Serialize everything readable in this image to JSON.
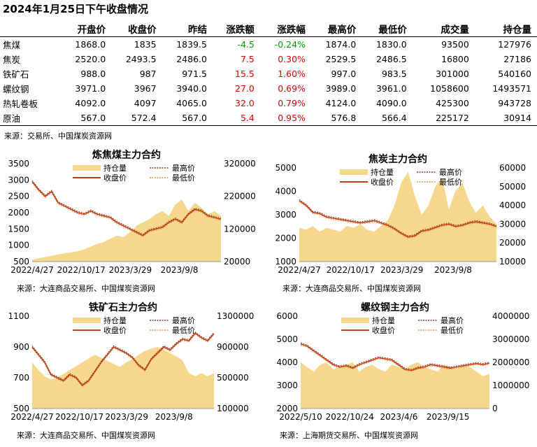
{
  "page": {
    "title": "2024年1月25日下午收盘情况",
    "source": "来源：交易所、中国煤炭资源网"
  },
  "table": {
    "headers": [
      "",
      "开盘价",
      "收盘价",
      "昨结",
      "涨跌额",
      "涨跌幅",
      "最高价",
      "最低价",
      "成交量",
      "持仓量"
    ],
    "rows": [
      {
        "name": "焦煤",
        "open": "1868.0",
        "close": "1835",
        "prev": "1839.5",
        "chg": "-4.5",
        "pct": "-0.24%",
        "high": "1874.0",
        "low": "1830.0",
        "vol": "93500",
        "oi": "127976",
        "dir": "down"
      },
      {
        "name": "焦炭",
        "open": "2520.0",
        "close": "2493.5",
        "prev": "2486.0",
        "chg": "7.5",
        "pct": "0.30%",
        "high": "2529.5",
        "low": "2486.5",
        "vol": "16800",
        "oi": "27186",
        "dir": "up"
      },
      {
        "name": "铁矿石",
        "open": "988.0",
        "close": "987",
        "prev": "971.5",
        "chg": "15.5",
        "pct": "1.60%",
        "high": "997.0",
        "low": "983.5",
        "vol": "301000",
        "oi": "540160",
        "dir": "up"
      },
      {
        "name": "螺纹钢",
        "open": "3971.0",
        "close": "3967",
        "prev": "3940.0",
        "chg": "27.0",
        "pct": "0.69%",
        "high": "3989.0",
        "low": "3961.0",
        "vol": "1058600",
        "oi": "1493571",
        "dir": "up"
      },
      {
        "name": "热轧卷板",
        "open": "4092.0",
        "close": "4097",
        "prev": "4065.0",
        "chg": "32.0",
        "pct": "0.79%",
        "high": "4124.0",
        "low": "4090.0",
        "vol": "425300",
        "oi": "943728",
        "dir": "up"
      },
      {
        "name": "原油",
        "open": "567.0",
        "close": "572.4",
        "prev": "567.0",
        "chg": "5.4",
        "pct": "0.95%",
        "high": "576.8",
        "low": "566.4",
        "vol": "225172",
        "oi": "30914",
        "dir": "up"
      }
    ]
  },
  "colors": {
    "up": "#e00000",
    "down": "#00a000",
    "oi_fill": "#f5d78e",
    "close_line": "#c0401a",
    "high_line": "#8b3a1a",
    "low_line": "#e8904a"
  },
  "legend_labels": {
    "oi": "持仓量",
    "high": "最高价",
    "close": "收盘价",
    "low": "最低价"
  },
  "chart_data": [
    {
      "type": "line",
      "title": "炼焦煤主力合约",
      "source": "来源：大连商品交易所、中国煤炭资源网",
      "xticks": [
        "2022/4/27",
        "2022/10/17",
        "2023/3/29",
        "2023/9/8"
      ],
      "ylim_left": [
        500,
        3500
      ],
      "yticks_left": [
        500,
        1000,
        1500,
        2000,
        2500,
        3000,
        3500
      ],
      "ylim_right": [
        20000,
        320000
      ],
      "yticks_right": [
        20000,
        120000,
        220000,
        320000
      ],
      "close": [
        2950,
        2700,
        2500,
        2650,
        2300,
        2200,
        2100,
        2000,
        1950,
        2050,
        1950,
        1900,
        1850,
        1700,
        1600,
        1500,
        1400,
        1300,
        1450,
        1500,
        1550,
        1700,
        1800,
        1700,
        1950,
        2100,
        2050,
        1900,
        1850,
        1800
      ],
      "oi": [
        26000,
        30000,
        34000,
        38000,
        42000,
        46000,
        48000,
        52000,
        58000,
        66000,
        74000,
        80000,
        90000,
        100000,
        95000,
        110000,
        130000,
        140000,
        150000,
        165000,
        175000,
        160000,
        195000,
        210000,
        175000,
        200000,
        185000,
        165000,
        175000,
        160000
      ]
    },
    {
      "type": "line",
      "title": "焦炭主力合约",
      "source": "来源：大连商品交易所、中国煤炭资源网",
      "xticks": [
        "2022/4/27",
        "2022/10/17",
        "2023/3/29",
        "2023/9/8"
      ],
      "ylim_left": [
        1000,
        5000
      ],
      "yticks_left": [
        1000,
        2000,
        3000,
        4000,
        5000
      ],
      "ylim_right": [
        10000,
        60000
      ],
      "yticks_right": [
        10000,
        20000,
        30000,
        40000,
        50000,
        60000
      ],
      "close": [
        3600,
        3400,
        3100,
        3050,
        2900,
        2850,
        2800,
        2750,
        2700,
        2650,
        2700,
        2750,
        2650,
        2550,
        2400,
        2200,
        2050,
        2100,
        2300,
        2350,
        2450,
        2550,
        2600,
        2500,
        2550,
        2650,
        2700,
        2650,
        2600,
        2500
      ],
      "oi": [
        28000,
        27000,
        29000,
        26000,
        28000,
        27000,
        26000,
        29000,
        28000,
        30000,
        27000,
        26000,
        29000,
        32000,
        40000,
        52000,
        58000,
        45000,
        35000,
        40000,
        50000,
        55000,
        38000,
        48000,
        52000,
        42000,
        36000,
        40000,
        34000,
        30000
      ]
    },
    {
      "type": "line",
      "title": "铁矿石主力合约",
      "source": "来源：大连商品交易所、中国煤炭资源网",
      "xticks": [
        "2022/4/27",
        "2022/10/17",
        "2023/3/29",
        "2023/9/8"
      ],
      "ylim_left": [
        500,
        1100
      ],
      "yticks_left": [
        500,
        700,
        900,
        1100
      ],
      "ylim_right": [
        100000,
        1300000
      ],
      "yticks_right": [
        100000,
        500000,
        900000,
        1300000
      ],
      "close": [
        900,
        850,
        800,
        720,
        700,
        680,
        720,
        700,
        650,
        680,
        740,
        800,
        850,
        900,
        880,
        860,
        830,
        780,
        750,
        820,
        860,
        900,
        880,
        920,
        950,
        940,
        990,
        960,
        940,
        987
      ],
      "oi": [
        700000,
        600000,
        520000,
        480000,
        500000,
        550000,
        600000,
        650000,
        700000,
        750000,
        800000,
        760000,
        720000,
        680000,
        640000,
        700000,
        740000,
        800000,
        850000,
        880000,
        900000,
        860000,
        820000,
        780000,
        720000,
        560000,
        520000,
        560000,
        520000,
        560000
      ]
    },
    {
      "type": "line",
      "title": "螺纹钢主力合约",
      "source": "来源：上海期货交易所、中国煤炭资源网",
      "xticks": [
        "2022/5/10",
        "2022/10/24",
        "2023/4/6",
        "2023/9/15"
      ],
      "ylim_left": [
        2000,
        6000
      ],
      "yticks_left": [
        2000,
        3000,
        4000,
        5000,
        6000
      ],
      "ylim_right": [
        0,
        4000000
      ],
      "yticks_right": [
        0,
        1000000,
        2000000,
        3000000,
        4000000
      ],
      "close": [
        4800,
        4700,
        4500,
        4300,
        4100,
        3900,
        3800,
        3850,
        3750,
        3900,
        4000,
        4100,
        4200,
        4150,
        4100,
        3900,
        3700,
        3650,
        3750,
        3800,
        3900,
        3850,
        3800,
        3750,
        3800,
        3850,
        3900,
        3950,
        3900,
        3967
      ],
      "oi": [
        2000000,
        1800000,
        1600000,
        1900000,
        2000000,
        1700000,
        1800000,
        1900000,
        2000000,
        1600000,
        1800000,
        1900000,
        1700000,
        1600000,
        1900000,
        1800000,
        1700000,
        1900000,
        2000000,
        1800000,
        1700000,
        1600000,
        1900000,
        1800000,
        1700000,
        1900000,
        1800000,
        1600000,
        1400000,
        1500000
      ]
    }
  ]
}
